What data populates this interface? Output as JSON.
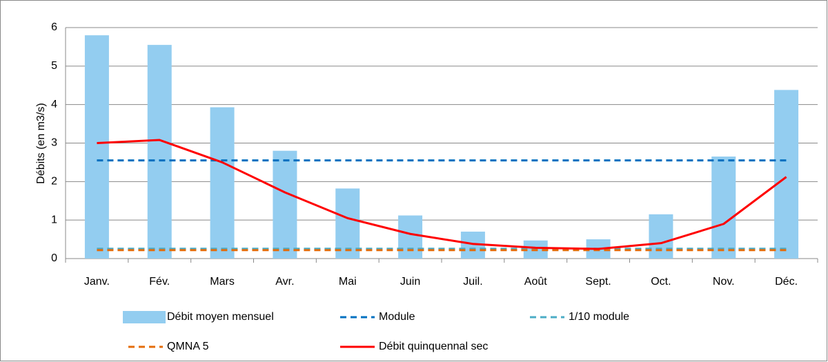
{
  "chart_data": {
    "type": "bar",
    "y_label": "Débits (en m3/s)",
    "categories": [
      "Janv.",
      "Fév.",
      "Mars",
      "Avr.",
      "Mai",
      "Juin",
      "Juil.",
      "Août",
      "Sept.",
      "Oct.",
      "Nov.",
      "Déc."
    ],
    "series": [
      {
        "name": "Débit moyen mensuel",
        "type": "bar",
        "color": "#93cdf0",
        "values": [
          5.8,
          5.55,
          3.93,
          2.8,
          1.82,
          1.12,
          0.7,
          0.47,
          0.5,
          1.15,
          2.65,
          4.38
        ]
      },
      {
        "name": "Module",
        "type": "dashed",
        "color": "#0070c0",
        "values": [
          2.55,
          2.55,
          2.55,
          2.55,
          2.55,
          2.55,
          2.55,
          2.55,
          2.55,
          2.55,
          2.55,
          2.55
        ]
      },
      {
        "name": "1/10 module",
        "type": "dashed",
        "color": "#4bacc6",
        "values": [
          0.255,
          0.255,
          0.255,
          0.255,
          0.255,
          0.255,
          0.255,
          0.255,
          0.255,
          0.255,
          0.255,
          0.255
        ]
      },
      {
        "name": "QMNA 5",
        "type": "dashed",
        "color": "#e46c0a",
        "values": [
          0.22,
          0.22,
          0.22,
          0.22,
          0.22,
          0.22,
          0.22,
          0.22,
          0.22,
          0.22,
          0.22,
          0.22
        ]
      },
      {
        "name": "Débit quinquennal sec",
        "type": "line",
        "color": "#ff0000",
        "values": [
          3.0,
          3.08,
          2.5,
          1.72,
          1.05,
          0.64,
          0.38,
          0.28,
          0.25,
          0.4,
          0.9,
          2.12
        ]
      }
    ],
    "ylim": [
      0,
      6
    ],
    "yticks": [
      0,
      1,
      2,
      3,
      4,
      5,
      6
    ],
    "grid": true
  }
}
